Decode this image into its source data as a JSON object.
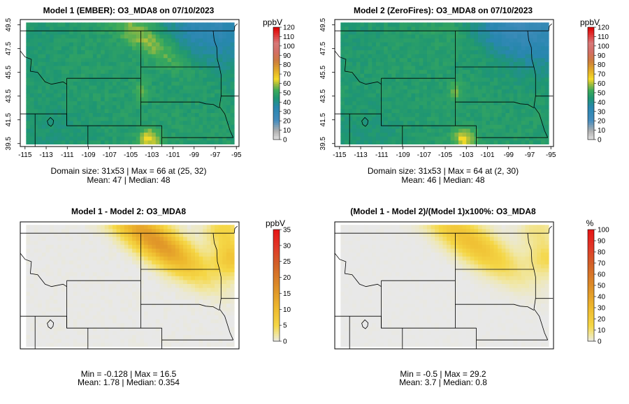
{
  "chart_data": [
    {
      "type": "heatmap",
      "title": "Model 1 (EMBER): O3_MDA8 on 07/10/2023",
      "colorbar": {
        "unit": "ppbV",
        "range": [
          0,
          120
        ],
        "ticks": [
          0,
          10,
          20,
          30,
          40,
          50,
          60,
          70,
          80,
          90,
          100,
          110,
          120
        ],
        "palette": "sequential-gray-blue-green-yellow-orange-red"
      },
      "x_ticks": [
        "-115",
        "-113",
        "-111",
        "-109",
        "-107",
        "-105",
        "-103",
        "-101",
        "-99",
        "-97",
        "-95"
      ],
      "y_ticks": [
        "39.5",
        "41.5",
        "43.5",
        "45.5",
        "47.5",
        "49.5"
      ],
      "xlim": [
        -115.2,
        -94.8
      ],
      "ylim": [
        39.3,
        49.9
      ],
      "stats": [
        "Domain size: 31x53 | Max = 66 at (25, 32)",
        "Mean: 47 |  Median: 48"
      ],
      "field": {
        "base": 47,
        "hotspots": [
          {
            "lon": -103.5,
            "lat": 48.0,
            "value": 64
          },
          {
            "lon": -103.2,
            "lat": 39.8,
            "value": 66
          },
          {
            "lon": -104.0,
            "lat": 43.8,
            "value": 58
          }
        ],
        "low_region": {
          "description": "northeast corner",
          "value": 35
        }
      }
    },
    {
      "type": "heatmap",
      "title": "Model 2 (ZeroFires): O3_MDA8 on 07/10/2023",
      "colorbar": {
        "unit": "ppbV",
        "range": [
          0,
          120
        ],
        "ticks": [
          0,
          10,
          20,
          30,
          40,
          50,
          60,
          70,
          80,
          90,
          100,
          110,
          120
        ],
        "palette": "sequential-gray-blue-green-yellow-orange-red"
      },
      "x_ticks": [
        "-115",
        "-113",
        "-111",
        "-109",
        "-107",
        "-105",
        "-103",
        "-101",
        "-99",
        "-97",
        "-95"
      ],
      "y_ticks": [
        "39.5",
        "41.5",
        "43.5",
        "45.5",
        "47.5",
        "49.5"
      ],
      "xlim": [
        -115.2,
        -94.8
      ],
      "ylim": [
        39.3,
        49.9
      ],
      "stats": [
        "Domain size: 31x53 | Max = 64 at (2, 30)",
        "Mean: 46 |  Median: 48"
      ],
      "field": {
        "base": 47,
        "hotspots": [
          {
            "lon": -103.2,
            "lat": 39.8,
            "value": 64
          },
          {
            "lon": -104.0,
            "lat": 43.8,
            "value": 56
          }
        ],
        "low_region": {
          "description": "northeast corner",
          "value": 33
        }
      }
    },
    {
      "type": "heatmap",
      "title": "Model 1 - Model 2: O3_MDA8",
      "colorbar": {
        "unit": "ppbV",
        "range": [
          0,
          35
        ],
        "ticks": [
          0,
          5,
          10,
          15,
          20,
          25,
          30,
          35
        ],
        "palette": "sequential-gray-yellow-orange-red"
      },
      "stats": [
        "Min = -0.128 | Max = 16.5",
        "Mean: 1.78 |  Median: 0.354"
      ],
      "field": {
        "max": 16.5,
        "plume": "northwest-to-southeast band across the northern domain"
      }
    },
    {
      "type": "heatmap",
      "title": "(Model 1 - Model 2)/(Model 1)x100%: O3_MDA8",
      "colorbar": {
        "unit": "%",
        "range": [
          0,
          100
        ],
        "ticks": [
          0,
          10,
          20,
          30,
          40,
          50,
          60,
          70,
          80,
          90,
          100
        ],
        "palette": "sequential-gray-yellow-orange-red"
      },
      "stats": [
        "Min = -0.5 | Max = 29.2",
        "Mean: 3.7 |  Median: 0.8"
      ],
      "field": {
        "max": 29.2,
        "plume": "northwest-to-southeast band across the northern domain"
      }
    }
  ]
}
